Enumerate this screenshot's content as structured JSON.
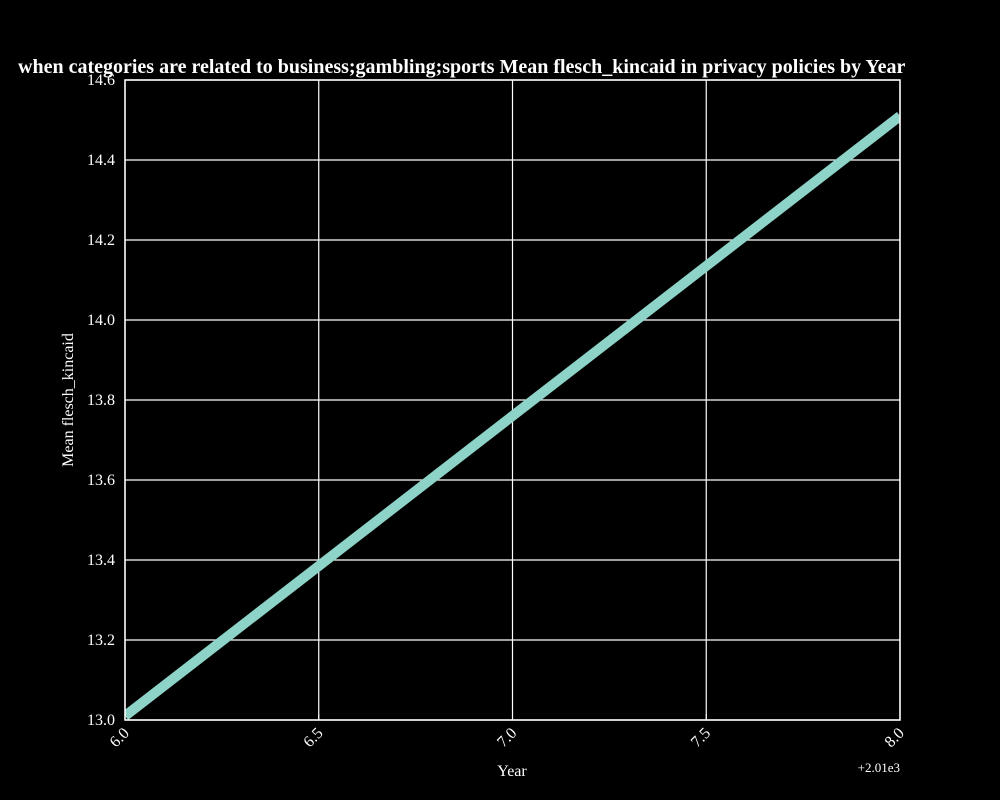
{
  "chart_data": {
    "type": "line",
    "title": "when categories are related to business;gambling;sports Mean flesch_kincaid in privacy policies by Year",
    "xlabel": "Year",
    "ylabel": "Mean flesch_kincaid",
    "x_offset_text": "+2.01e3",
    "x": [
      2016,
      2018
    ],
    "series": [
      {
        "values": [
          13.01,
          14.51
        ],
        "color": "#8dd3c7"
      }
    ],
    "xlim": [
      2016,
      2018
    ],
    "ylim": [
      13.0,
      14.6
    ],
    "xticks": [
      6.0,
      6.5,
      7.0,
      7.5,
      8.0
    ],
    "xtick_labels": [
      "6.0",
      "6.5",
      "7.0",
      "7.5",
      "8.0"
    ],
    "yticks": [
      13.0,
      13.2,
      13.4,
      13.6,
      13.8,
      14.0,
      14.2,
      14.4,
      14.6
    ],
    "ytick_labels": [
      "13.0",
      "13.2",
      "13.4",
      "13.6",
      "13.8",
      "14.0",
      "14.2",
      "14.4",
      "14.6"
    ],
    "grid": true,
    "background": "#000000",
    "foreground": "#ffffff"
  }
}
